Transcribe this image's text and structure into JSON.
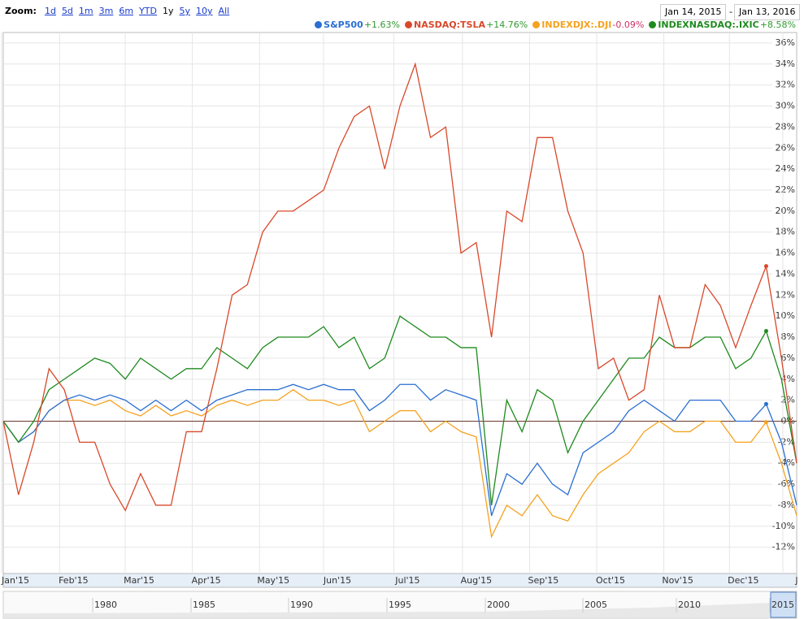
{
  "toolbar": {
    "zoom_label": "Zoom:",
    "zoom_options": [
      "1d",
      "5d",
      "1m",
      "3m",
      "6m",
      "YTD",
      "1y",
      "5y",
      "10y",
      "All"
    ],
    "active_zoom": 6,
    "date_from": "Jan 14, 2015",
    "date_sep": "-",
    "date_to": "Jan 13, 2016"
  },
  "chart_data": {
    "type": "line",
    "series": [
      {
        "name": "S&P500",
        "change": "+1.63%",
        "change_color": "#339933",
        "color": "#2a6fd1",
        "values": [
          0,
          -2,
          -1,
          1,
          2,
          2.5,
          2,
          2.5,
          2,
          1,
          2,
          1,
          2,
          1,
          2,
          2.5,
          3,
          3,
          3,
          3.5,
          3,
          3.5,
          3,
          3,
          1,
          2,
          3.5,
          3.5,
          2,
          3,
          2.5,
          2,
          -9,
          -5,
          -6,
          -4,
          -6,
          -7,
          -3,
          -2,
          -1,
          1,
          2,
          1,
          0,
          2,
          2,
          2,
          0,
          0,
          1.63,
          -2,
          -8
        ]
      },
      {
        "name": "NASDAQ:TSLA",
        "change": "+14.76%",
        "change_color": "#339933",
        "color": "#d9482b",
        "values": [
          0,
          -7,
          -2,
          5,
          3,
          -2,
          -2,
          -6,
          -8.5,
          -5,
          -8,
          -8,
          -1,
          -1,
          5,
          12,
          13,
          18,
          20,
          20,
          21,
          22,
          26,
          29,
          30,
          24,
          30,
          34,
          27,
          28,
          16,
          17,
          8,
          20,
          19,
          27,
          27,
          20,
          16,
          5,
          6,
          2,
          3,
          12,
          7,
          7,
          13,
          11,
          7,
          11,
          14.76,
          6,
          -4
        ]
      },
      {
        "name": "INDEXDJX:.DJI",
        "change": "-0.09%",
        "change_color": "#cc3366",
        "color": "#f4a21f",
        "values": [
          0,
          -2,
          -1,
          1,
          2,
          2,
          1.5,
          2,
          1,
          0.5,
          1.5,
          0.5,
          1,
          0.5,
          1.5,
          2,
          1.5,
          2,
          2,
          3,
          2,
          2,
          1.5,
          2,
          -1,
          0,
          1,
          1,
          -1,
          0,
          -1,
          -1.5,
          -11,
          -8,
          -9,
          -7,
          -9,
          -9.5,
          -7,
          -5,
          -4,
          -3,
          -1,
          0,
          -1,
          -1,
          0,
          0,
          -2,
          -2,
          -0.09,
          -4,
          -9
        ]
      },
      {
        "name": "INDEXNASDAQ:.IXIC",
        "change": "+8.58%",
        "change_color": "#339933",
        "color": "#1e8a1e",
        "values": [
          0,
          -2,
          0,
          3,
          4,
          5,
          6,
          5.5,
          4,
          6,
          5,
          4,
          5,
          5,
          7,
          6,
          5,
          7,
          8,
          8,
          8,
          9,
          7,
          8,
          5,
          6,
          10,
          9,
          8,
          8,
          7,
          7,
          -8,
          2,
          -1,
          3,
          2,
          -3,
          0,
          2,
          4,
          6,
          6,
          8,
          7,
          7,
          8,
          8,
          5,
          6,
          8.58,
          4,
          -4
        ]
      }
    ],
    "xlim": [
      0,
      52
    ],
    "xticks": [
      {
        "value": 0.8,
        "label": "Jan'15"
      },
      {
        "value": 4.6,
        "label": "Feb'15"
      },
      {
        "value": 8.9,
        "label": "Mar'15"
      },
      {
        "value": 13.3,
        "label": "Apr'15"
      },
      {
        "value": 17.7,
        "label": "May'15"
      },
      {
        "value": 21.9,
        "label": "Jun'15"
      },
      {
        "value": 26.5,
        "label": "Jul'15"
      },
      {
        "value": 31,
        "label": "Aug'15"
      },
      {
        "value": 35.4,
        "label": "Sep'15"
      },
      {
        "value": 39.8,
        "label": "Oct'15"
      },
      {
        "value": 44.2,
        "label": "Nov'15"
      },
      {
        "value": 48.5,
        "label": "Dec'15"
      },
      {
        "value": 52,
        "label": "J"
      }
    ],
    "ylim": [
      -14.5,
      37
    ],
    "yticks": [
      {
        "value": 36,
        "label": "36%"
      },
      {
        "value": 34,
        "label": "34%"
      },
      {
        "value": 32,
        "label": "32%"
      },
      {
        "value": 30,
        "label": "30%"
      },
      {
        "value": 28,
        "label": "28%"
      },
      {
        "value": 26,
        "label": "26%"
      },
      {
        "value": 24,
        "label": "24%"
      },
      {
        "value": 22,
        "label": "22%"
      },
      {
        "value": 20,
        "label": "20%"
      },
      {
        "value": 18,
        "label": "18%"
      },
      {
        "value": 16,
        "label": "16%"
      },
      {
        "value": 14,
        "label": "14%"
      },
      {
        "value": 12,
        "label": "12%"
      },
      {
        "value": 10,
        "label": "10%"
      },
      {
        "value": 8,
        "label": "8%"
      },
      {
        "value": 6,
        "label": "6%"
      },
      {
        "value": 4,
        "label": "4%"
      },
      {
        "value": 2,
        "label": "2%"
      },
      {
        "value": 0,
        "label": "0%"
      },
      {
        "value": -2,
        "label": "-2%"
      },
      {
        "value": -4,
        "label": "-4%"
      },
      {
        "value": -6,
        "label": "-6%"
      },
      {
        "value": -8,
        "label": "-8%"
      },
      {
        "value": -10,
        "label": "-10%"
      },
      {
        "value": -12,
        "label": "-12%"
      }
    ],
    "grid": true,
    "marker_index": 50
  },
  "navigator": {
    "years": [
      "1980",
      "1985",
      "1990",
      "1995",
      "2000",
      "2005",
      "2010",
      "2015"
    ]
  }
}
